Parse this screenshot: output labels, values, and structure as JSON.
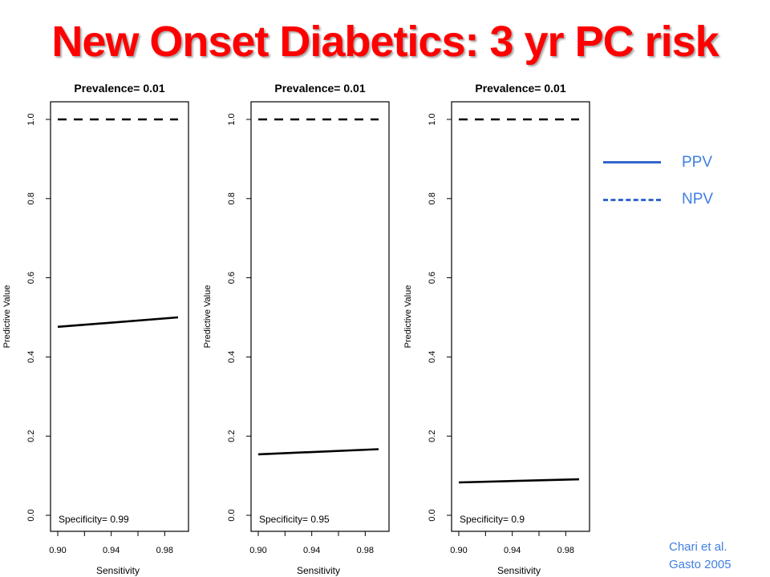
{
  "slide": {
    "title": "New Onset Diabetics: 3 yr PC risk",
    "citation_line1": "Chari et al.",
    "citation_line2": "Gasto 2005"
  },
  "legend": {
    "ppv_label": "PPV",
    "npv_label": "NPV",
    "color": "#3366cc"
  },
  "chart_data": [
    {
      "type": "line",
      "title": "Prevalence= 0.01",
      "annotation": "Specificity= 0.99",
      "xlabel": "Sensitivity",
      "ylabel": "Predictive Value",
      "xlim": [
        0.9,
        0.99
      ],
      "ylim": [
        0.0,
        1.0
      ],
      "xticks": [
        "0.90",
        "0.94",
        "0.98"
      ],
      "yticks": [
        "0.0",
        "0.2",
        "0.4",
        "0.6",
        "0.8",
        "1.0"
      ],
      "series": [
        {
          "name": "PPV",
          "style": "solid",
          "x": [
            0.9,
            0.99
          ],
          "y": [
            0.476,
            0.5
          ]
        },
        {
          "name": "NPV",
          "style": "dashed",
          "x": [
            0.9,
            0.99
          ],
          "y": [
            1.0,
            1.0
          ]
        }
      ]
    },
    {
      "type": "line",
      "title": "Prevalence= 0.01",
      "annotation": "Specificity= 0.95",
      "xlabel": "Sensitivity",
      "ylabel": "Predictive Value",
      "xlim": [
        0.9,
        0.99
      ],
      "ylim": [
        0.0,
        1.0
      ],
      "xticks": [
        "0.90",
        "0.94",
        "0.98"
      ],
      "yticks": [
        "0.0",
        "0.2",
        "0.4",
        "0.6",
        "0.8",
        "1.0"
      ],
      "series": [
        {
          "name": "PPV",
          "style": "solid",
          "x": [
            0.9,
            0.99
          ],
          "y": [
            0.154,
            0.167
          ]
        },
        {
          "name": "NPV",
          "style": "dashed",
          "x": [
            0.9,
            0.99
          ],
          "y": [
            1.0,
            1.0
          ]
        }
      ]
    },
    {
      "type": "line",
      "title": "Prevalence= 0.01",
      "annotation": "Specificity= 0.9",
      "xlabel": "Sensitivity",
      "ylabel": "Predictive Value",
      "xlim": [
        0.9,
        0.99
      ],
      "ylim": [
        0.0,
        1.0
      ],
      "xticks": [
        "0.90",
        "0.94",
        "0.98"
      ],
      "yticks": [
        "0.0",
        "0.2",
        "0.4",
        "0.6",
        "0.8",
        "1.0"
      ],
      "series": [
        {
          "name": "PPV",
          "style": "solid",
          "x": [
            0.9,
            0.99
          ],
          "y": [
            0.083,
            0.091
          ]
        },
        {
          "name": "NPV",
          "style": "dashed",
          "x": [
            0.9,
            0.99
          ],
          "y": [
            1.0,
            1.0
          ]
        }
      ]
    }
  ]
}
